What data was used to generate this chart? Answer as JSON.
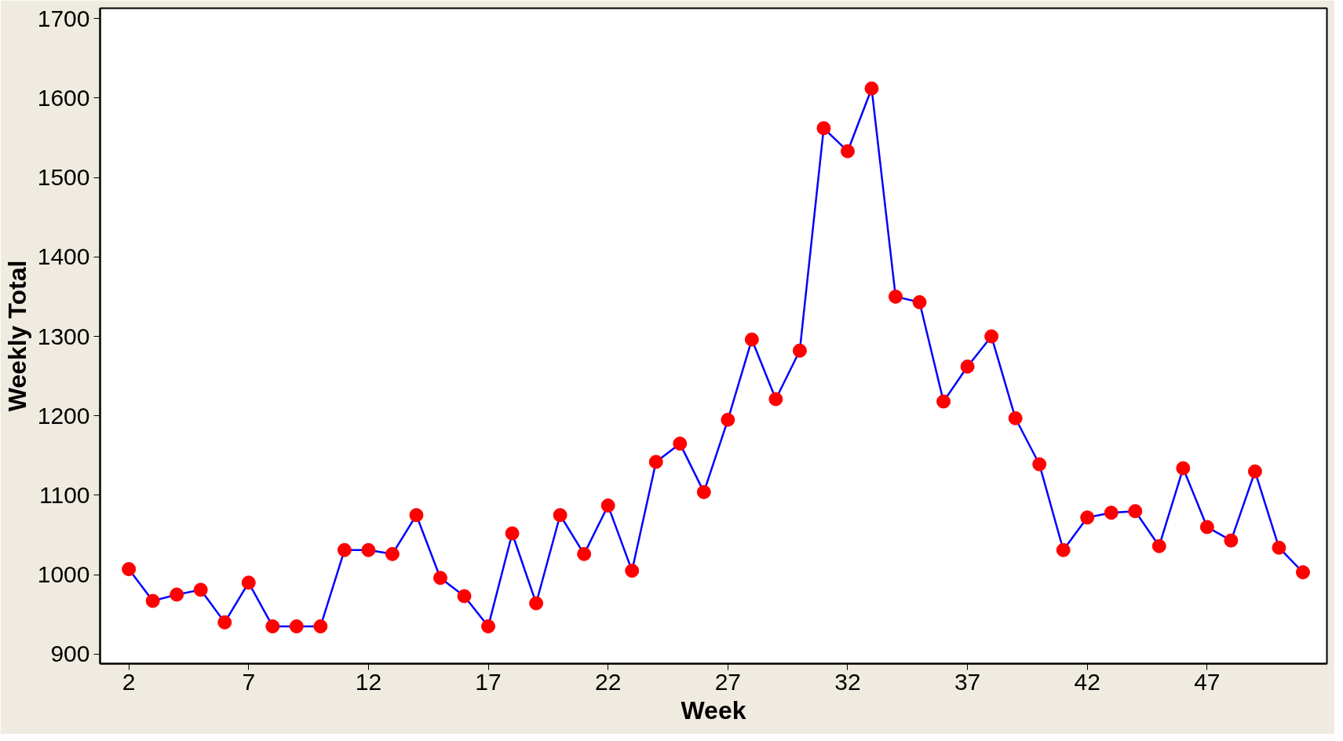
{
  "chart_data": {
    "type": "line",
    "xlabel": "Week",
    "ylabel": "Weekly Total",
    "x": [
      2,
      3,
      4,
      5,
      6,
      7,
      8,
      9,
      10,
      11,
      12,
      13,
      14,
      15,
      16,
      17,
      18,
      19,
      20,
      21,
      22,
      23,
      24,
      25,
      26,
      27,
      28,
      29,
      30,
      31,
      32,
      33,
      34,
      35,
      36,
      37,
      38,
      39,
      40,
      41,
      42,
      43,
      44,
      45,
      46,
      47,
      48,
      49,
      50,
      51
    ],
    "series": [
      {
        "color": "#0000ff",
        "colors": [
          "#ff0000",
          "#ff0000",
          "#ff0000",
          "#ff0000",
          "#ff0000",
          "#ff0000",
          "#ff0000",
          "#ff0000",
          "#ff0000",
          "#ff0000",
          "#ff0000",
          "#ff0000",
          "#ff0000",
          "#ff0000",
          "#ff0000",
          "#ff0000",
          "#ff0000",
          "#ff0000",
          "#ff0000",
          "#ff0000",
          "#ff0000",
          "#ff0000",
          "#ff0000",
          "#ff0000",
          "#ff0000",
          "#ff0000",
          "#ff0000",
          "#ff0000",
          "#ff0000",
          "#ff0000",
          "#ff0000",
          "#ff0000",
          "#ff0000",
          "#ff0000",
          "#ff0000",
          "#ff0000",
          "#ff0000",
          "#ff0000",
          "#ff0000",
          "#ff0000",
          "#ff0000",
          "#ff0000",
          "#ff0000",
          "#ff0000",
          "#ff0000",
          "#ff0000",
          "#ff0000",
          "#ff0000",
          "#ff0000",
          "#ff0000"
        ],
        "values": [
          1007,
          967,
          975,
          981,
          940,
          990,
          935,
          935,
          935,
          1031,
          1031,
          1026,
          1075,
          996,
          973,
          935,
          1052,
          964,
          1075,
          1026,
          1087,
          1005,
          1142,
          1165,
          1104,
          1195,
          1296,
          1221,
          1282,
          1562,
          1533,
          1612,
          1350,
          1343,
          1218,
          1262,
          1300,
          1197,
          1139,
          1031,
          1072,
          1078,
          1080,
          1036,
          1134,
          1060,
          1043,
          1130,
          1034,
          1003
        ]
      }
    ],
    "xlim": [
      0.8,
      52
    ],
    "xticks": [
      2,
      7,
      12,
      17,
      22,
      27,
      32,
      37,
      42,
      47
    ],
    "ylim": [
      888,
      1713
    ],
    "yticks": [
      900,
      1000,
      1100,
      1200,
      1300,
      1400,
      1500,
      1600,
      1700
    ],
    "marker": "circle",
    "line_style": "solid",
    "grid": false
  }
}
